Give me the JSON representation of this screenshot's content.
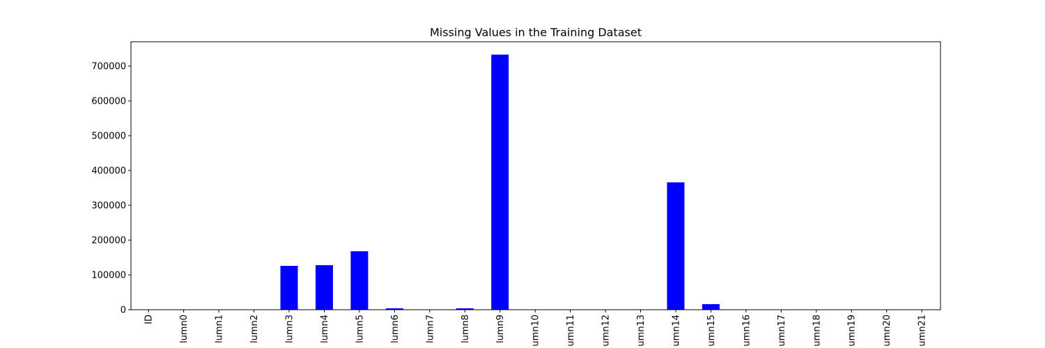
{
  "chart_data": {
    "type": "bar",
    "title": "Missing Values in the Training Dataset",
    "xlabel": "",
    "ylabel": "",
    "categories": [
      "ID",
      "lumn0",
      "lumn1",
      "lumn2",
      "lumn3",
      "lumn4",
      "lumn5",
      "lumn6",
      "lumn7",
      "lumn8",
      "lumn9",
      "umn10",
      "umn11",
      "umn12",
      "umn13",
      "umn14",
      "umn15",
      "umn16",
      "umn17",
      "umn18",
      "umn19",
      "umn20",
      "umn21"
    ],
    "values": [
      0,
      0,
      0,
      0,
      126000,
      128000,
      168000,
      4000,
      0,
      4000,
      733000,
      0,
      0,
      0,
      0,
      366000,
      16000,
      0,
      0,
      0,
      0,
      0,
      0
    ],
    "ylim": [
      0,
      770000
    ],
    "yticks": [
      0,
      100000,
      200000,
      300000,
      400000,
      500000,
      600000,
      700000
    ],
    "ytick_labels": [
      "0",
      "100000",
      "200000",
      "300000",
      "400000",
      "500000",
      "600000",
      "700000"
    ],
    "bar_color": "#0000ff",
    "grid": false,
    "legend": "none"
  }
}
